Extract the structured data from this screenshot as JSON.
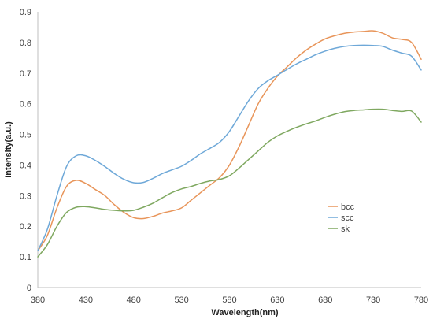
{
  "chart_data": {
    "type": "line",
    "title": "",
    "xlabel": "Wavelength(nm)",
    "ylabel": "Intensity(a.u.)",
    "xlim": [
      380,
      780
    ],
    "ylim": [
      0,
      0.9
    ],
    "x_ticks": [
      "380",
      "430",
      "480",
      "530",
      "580",
      "630",
      "680",
      "730",
      "780"
    ],
    "y_ticks": [
      "0",
      "0.1",
      "0.2",
      "0.3",
      "0.4",
      "0.5",
      "0.6",
      "0.7",
      "0.8",
      "0.9"
    ],
    "grid": false,
    "legend_position": "right",
    "x": [
      380,
      390,
      400,
      410,
      420,
      430,
      440,
      450,
      460,
      470,
      480,
      490,
      500,
      510,
      520,
      530,
      540,
      550,
      560,
      570,
      580,
      590,
      600,
      610,
      620,
      630,
      640,
      650,
      660,
      670,
      680,
      690,
      700,
      710,
      720,
      730,
      740,
      750,
      760,
      770,
      780
    ],
    "series": [
      {
        "name": "bcc",
        "color": "#e8955a",
        "values": [
          0.12,
          0.17,
          0.26,
          0.33,
          0.35,
          0.34,
          0.32,
          0.3,
          0.27,
          0.245,
          0.228,
          0.225,
          0.232,
          0.243,
          0.25,
          0.26,
          0.285,
          0.31,
          0.335,
          0.36,
          0.4,
          0.46,
          0.53,
          0.6,
          0.65,
          0.69,
          0.72,
          0.75,
          0.775,
          0.795,
          0.812,
          0.822,
          0.83,
          0.834,
          0.836,
          0.838,
          0.83,
          0.815,
          0.81,
          0.8,
          0.745
        ]
      },
      {
        "name": "scc",
        "color": "#6ea8d8",
        "values": [
          0.12,
          0.19,
          0.3,
          0.395,
          0.43,
          0.43,
          0.415,
          0.395,
          0.372,
          0.353,
          0.342,
          0.343,
          0.356,
          0.372,
          0.384,
          0.396,
          0.415,
          0.437,
          0.455,
          0.475,
          0.51,
          0.56,
          0.61,
          0.65,
          0.675,
          0.693,
          0.712,
          0.73,
          0.745,
          0.76,
          0.772,
          0.781,
          0.787,
          0.79,
          0.791,
          0.79,
          0.787,
          0.775,
          0.765,
          0.755,
          0.71
        ]
      },
      {
        "name": "sk",
        "color": "#7fa860",
        "values": [
          0.1,
          0.14,
          0.2,
          0.245,
          0.262,
          0.264,
          0.26,
          0.255,
          0.252,
          0.25,
          0.252,
          0.262,
          0.275,
          0.293,
          0.31,
          0.322,
          0.33,
          0.34,
          0.348,
          0.353,
          0.365,
          0.39,
          0.418,
          0.446,
          0.474,
          0.495,
          0.51,
          0.523,
          0.534,
          0.544,
          0.556,
          0.566,
          0.574,
          0.578,
          0.58,
          0.582,
          0.582,
          0.578,
          0.575,
          0.576,
          0.54
        ]
      }
    ]
  }
}
